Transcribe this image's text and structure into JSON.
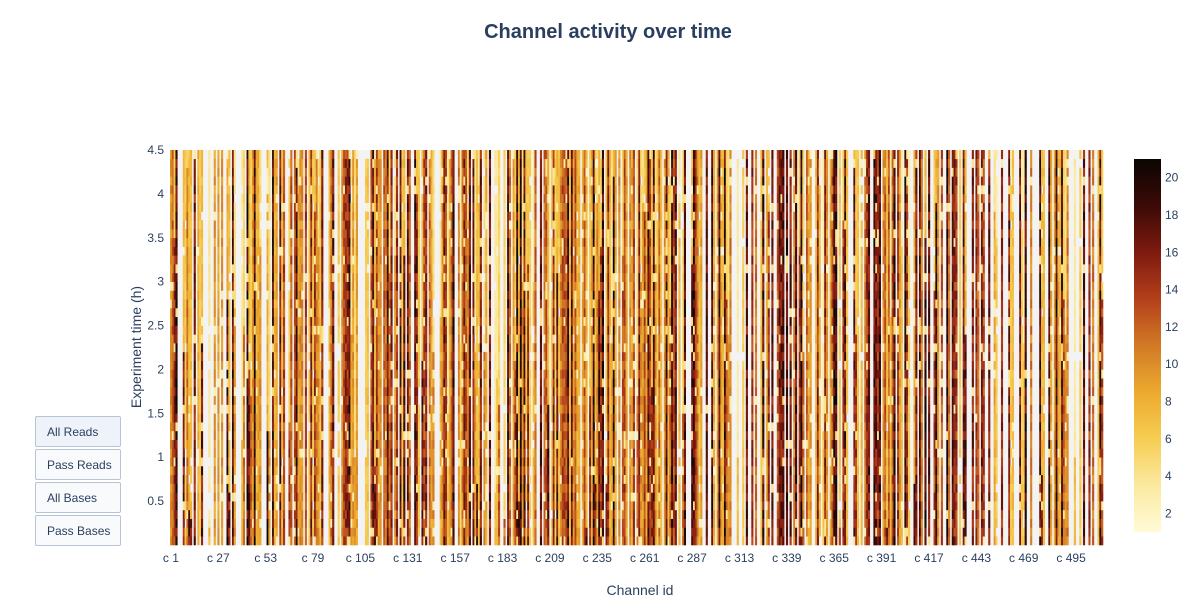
{
  "buttons": [
    {
      "label": "All Reads",
      "active": true
    },
    {
      "label": "Pass Reads",
      "active": false
    },
    {
      "label": "All Bases",
      "active": false
    },
    {
      "label": "Pass Bases",
      "active": false
    }
  ],
  "chart_data": {
    "type": "heatmap",
    "title": "Channel activity over time",
    "xlabel": "Channel id",
    "ylabel": "Experiment time (h)",
    "x_tick_labels": [
      "c 1",
      "c 27",
      "c 53",
      "c 79",
      "c 105",
      "c 131",
      "c 157",
      "c 183",
      "c 209",
      "c 235",
      "c 261",
      "c 287",
      "c 313",
      "c 339",
      "c 365",
      "c 391",
      "c 417",
      "c 443",
      "c 469",
      "c 495"
    ],
    "y_tick_labels": [
      "0.5",
      "1",
      "1.5",
      "2",
      "2.5",
      "3",
      "3.5",
      "4",
      "4.5"
    ],
    "ylim": [
      0,
      4.5
    ],
    "channel_count": 512,
    "time_bins": 45,
    "colorscale": [
      "#fffbd6",
      "#fbe9a0",
      "#f6cd52",
      "#ecaa2f",
      "#d17a26",
      "#b43f1b",
      "#7e1a10",
      "#3b0a06",
      "#0b0502"
    ],
    "colorbar": {
      "min": 1,
      "max": 21,
      "ticks": [
        "2",
        "4",
        "6",
        "8",
        "10",
        "12",
        "14",
        "16",
        "18",
        "20"
      ]
    },
    "colorscale_names": "yellow-orange-red-black (YlOrRd-like)"
  }
}
